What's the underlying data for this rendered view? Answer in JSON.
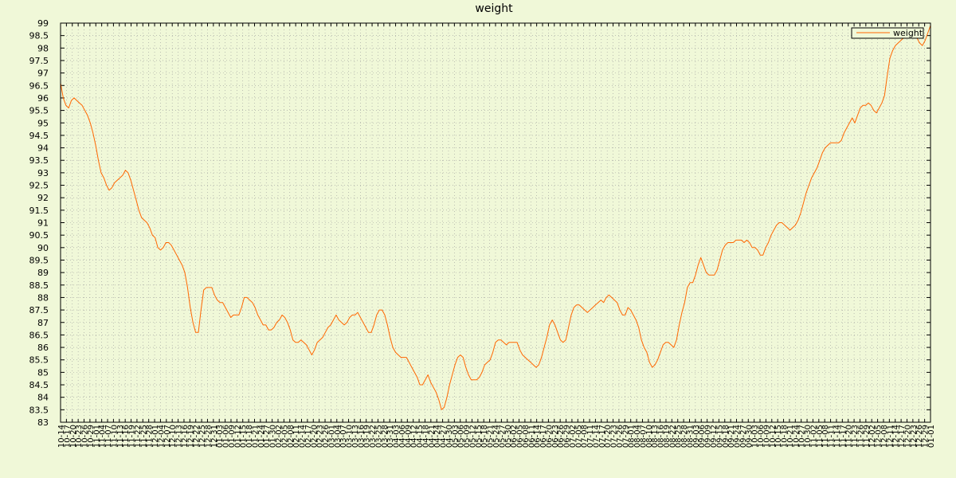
{
  "chart_data": {
    "type": "line",
    "title": "weight",
    "xlabel": "",
    "ylabel": "",
    "ylim": [
      83,
      99
    ],
    "yticks": [
      "83",
      "83.5",
      "84",
      "84.5",
      "85",
      "85.5",
      "86",
      "86.5",
      "87",
      "87.5",
      "88",
      "88.5",
      "89",
      "89.5",
      "90",
      "90.5",
      "91",
      "91.5",
      "92",
      "92.5",
      "93",
      "93.5",
      "94",
      "94.5",
      "95",
      "95.5",
      "96",
      "96.5",
      "97",
      "97.5",
      "98",
      "98.5",
      "99"
    ],
    "xticks": [
      "10-14",
      "10-17",
      "10-20",
      "10-23",
      "10-26",
      "10-29",
      "11-01",
      "11-04",
      "11-07",
      "11-10",
      "11-13",
      "11-16",
      "11-19",
      "11-22",
      "11-25",
      "11-28",
      "12-01",
      "12-04",
      "12-07",
      "12-10",
      "12-13",
      "12-16",
      "12-19",
      "12-22",
      "12-25",
      "12-28",
      "12-31",
      "01-03",
      "01-06",
      "01-09",
      "01-12",
      "01-15",
      "01-18",
      "01-21",
      "01-24",
      "01-27",
      "01-30",
      "02-02",
      "02-05",
      "02-08",
      "02-11",
      "02-14",
      "02-17",
      "02-20",
      "02-23",
      "02-26",
      "03-01",
      "03-04",
      "03-07",
      "03-10",
      "03-13",
      "03-16",
      "03-19",
      "03-22",
      "03-25",
      "03-28",
      "03-31",
      "04-03",
      "04-06",
      "04-09",
      "04-12",
      "04-15",
      "04-18",
      "04-21",
      "04-24",
      "04-27",
      "04-30",
      "05-03",
      "05-06",
      "05-09",
      "05-12",
      "05-15",
      "05-18",
      "05-21",
      "05-24",
      "05-27",
      "05-30",
      "06-02",
      "06-05",
      "06-08",
      "06-11",
      "06-14",
      "06-17",
      "06-20",
      "06-23",
      "06-26",
      "06-29",
      "07-02",
      "07-05",
      "07-08",
      "07-11",
      "07-14",
      "07-17",
      "07-20",
      "07-23",
      "07-26",
      "07-29",
      "08-01",
      "08-04",
      "08-07",
      "08-10",
      "08-13",
      "08-16",
      "08-19",
      "08-22",
      "08-25",
      "08-28",
      "08-31",
      "09-03",
      "09-06",
      "09-09",
      "09-12",
      "09-15",
      "09-18",
      "09-21",
      "09-24",
      "09-27",
      "09-30",
      "10-03",
      "10-06",
      "10-09",
      "10-12",
      "10-15",
      "10-18",
      "10-21",
      "10-24",
      "10-27",
      "10-30",
      "11-02",
      "11-05",
      "11-08",
      "11-11",
      "11-14",
      "11-17",
      "11-20",
      "11-23",
      "11-26",
      "11-29",
      "12-02",
      "12-05",
      "12-08",
      "12-11",
      "12-14",
      "12-17",
      "12-20",
      "12-23",
      "12-26",
      "12-29",
      "01-01"
    ],
    "grid": true,
    "legend": "top-right",
    "series": [
      {
        "name": "weight",
        "color": "#ff6600",
        "values": [
          96.6,
          96.0,
          95.7,
          95.6,
          95.9,
          96.0,
          95.9,
          95.8,
          95.7,
          95.5,
          95.3,
          95.0,
          94.6,
          94.1,
          93.5,
          93.0,
          92.8,
          92.5,
          92.3,
          92.4,
          92.6,
          92.7,
          92.8,
          92.9,
          93.1,
          93.0,
          92.7,
          92.3,
          91.9,
          91.5,
          91.2,
          91.1,
          91.0,
          90.8,
          90.5,
          90.4,
          90.0,
          89.9,
          90.0,
          90.2,
          90.2,
          90.1,
          89.9,
          89.7,
          89.5,
          89.3,
          89.0,
          88.4,
          87.6,
          87.0,
          86.6,
          86.6,
          87.5,
          88.3,
          88.4,
          88.4,
          88.4,
          88.1,
          87.9,
          87.8,
          87.8,
          87.6,
          87.4,
          87.2,
          87.3,
          87.3,
          87.3,
          87.6,
          88.0,
          88.0,
          87.9,
          87.8,
          87.6,
          87.3,
          87.1,
          86.9,
          86.9,
          86.7,
          86.7,
          86.8,
          87.0,
          87.1,
          87.3,
          87.2,
          87.0,
          86.7,
          86.3,
          86.2,
          86.2,
          86.3,
          86.2,
          86.1,
          85.9,
          85.7,
          85.9,
          86.2,
          86.3,
          86.4,
          86.6,
          86.8,
          86.9,
          87.1,
          87.3,
          87.1,
          87.0,
          86.9,
          87.0,
          87.2,
          87.3,
          87.3,
          87.4,
          87.2,
          87.0,
          86.8,
          86.6,
          86.6,
          86.9,
          87.3,
          87.5,
          87.5,
          87.3,
          86.9,
          86.4,
          86.0,
          85.8,
          85.7,
          85.6,
          85.6,
          85.6,
          85.4,
          85.2,
          85.0,
          84.8,
          84.5,
          84.5,
          84.7,
          84.9,
          84.6,
          84.4,
          84.2,
          83.9,
          83.5,
          83.6,
          84.0,
          84.5,
          84.9,
          85.3,
          85.6,
          85.7,
          85.6,
          85.2,
          84.9,
          84.7,
          84.7,
          84.7,
          84.8,
          85.0,
          85.3,
          85.4,
          85.5,
          85.8,
          86.2,
          86.3,
          86.3,
          86.2,
          86.1,
          86.2,
          86.2,
          86.2,
          86.2,
          85.9,
          85.7,
          85.6,
          85.5,
          85.4,
          85.3,
          85.2,
          85.3,
          85.6,
          86.0,
          86.4,
          86.9,
          87.1,
          86.9,
          86.6,
          86.3,
          86.2,
          86.3,
          86.8,
          87.3,
          87.6,
          87.7,
          87.7,
          87.6,
          87.5,
          87.4,
          87.5,
          87.6,
          87.7,
          87.8,
          87.9,
          87.8,
          88.0,
          88.1,
          88.0,
          87.9,
          87.8,
          87.5,
          87.3,
          87.3,
          87.6,
          87.5,
          87.3,
          87.1,
          86.8,
          86.3,
          86.0,
          85.8,
          85.4,
          85.2,
          85.3,
          85.5,
          85.8,
          86.1,
          86.2,
          86.2,
          86.1,
          86.0,
          86.3,
          86.9,
          87.4,
          87.8,
          88.4,
          88.6,
          88.6,
          88.9,
          89.3,
          89.6,
          89.3,
          89.0,
          88.9,
          88.9,
          88.9,
          89.1,
          89.5,
          89.9,
          90.1,
          90.2,
          90.2,
          90.2,
          90.3,
          90.3,
          90.3,
          90.2,
          90.3,
          90.2,
          90.0,
          90.0,
          89.9,
          89.7,
          89.7,
          90.0,
          90.2,
          90.5,
          90.7,
          90.9,
          91.0,
          91.0,
          90.9,
          90.8,
          90.7,
          90.8,
          90.9,
          91.1,
          91.4,
          91.8,
          92.2,
          92.5,
          92.8,
          93.0,
          93.2,
          93.5,
          93.8,
          94.0,
          94.1,
          94.2,
          94.2,
          94.2,
          94.2,
          94.3,
          94.6,
          94.8,
          95.0,
          95.2,
          95.0,
          95.3,
          95.6,
          95.7,
          95.7,
          95.8,
          95.7,
          95.5,
          95.4,
          95.6,
          95.8,
          96.1,
          96.9,
          97.6,
          97.9,
          98.1,
          98.2,
          98.3,
          98.4,
          98.5,
          98.6,
          98.7,
          98.6,
          98.4,
          98.2,
          98.1,
          98.3,
          98.6,
          98.9
        ]
      }
    ]
  }
}
